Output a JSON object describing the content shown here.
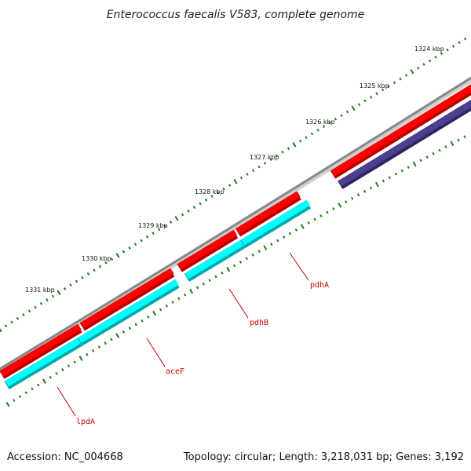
{
  "title": "Enterococcus faecalis V583, complete genome",
  "footer": {
    "accession": "Accession: NC_004668",
    "summary": "Topology: circular; Length: 3,218,031 bp; Genes: 3,192"
  },
  "scale": {
    "labels": [
      "1324 kbp",
      "1325 kbp",
      "1326 kbp",
      "1327 kbp",
      "1328 kbp",
      "1329 kbp",
      "1330 kbp",
      "1331 kbp"
    ]
  },
  "genes": [
    {
      "name": "lpdA",
      "color": "#00ffff",
      "label_color": "#cc0000"
    },
    {
      "name": "aceF",
      "color": "#00ffff",
      "label_color": "#cc0000"
    },
    {
      "name": "pdhB",
      "color": "#00ffff",
      "label_color": "#cc0000"
    },
    {
      "name": "pdhA",
      "color": "#00ffff",
      "label_color": "#cc0000"
    }
  ],
  "colors": {
    "backbone": "#888888",
    "forward_cds": "#ff0000",
    "reverse_cds": "#00ffff",
    "other_feature": "#4b3f8f",
    "tick": "#1a7a1a"
  }
}
